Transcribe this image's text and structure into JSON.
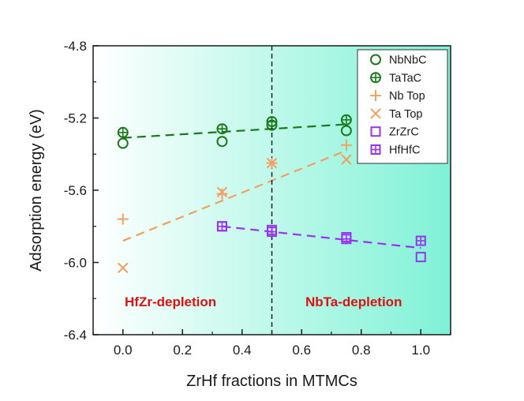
{
  "chart_data": {
    "type": "scatter",
    "xlabel": "ZrHf fractions in MTMCs",
    "ylabel": "Adsorption energy (eV)",
    "xlim": [
      -0.1,
      1.1
    ],
    "ylim": [
      -6.4,
      -4.8
    ],
    "xticks": [
      "0.0",
      "0.2",
      "0.4",
      "0.6",
      "0.8",
      "1.0"
    ],
    "yticks": [
      "-4.8",
      "-5.2",
      "-5.6",
      "-6.0",
      "-6.4"
    ],
    "grid": false,
    "legend_position": "top-right",
    "vline_x": 0.5,
    "background_gradient": [
      "#ffffff",
      "#7ff2d6"
    ],
    "regions": [
      {
        "label": "HfZr-depletion",
        "color": "#dd1111"
      },
      {
        "label": "NbTa-depletion",
        "color": "#dd1111"
      }
    ],
    "series": [
      {
        "name": "NbNbC",
        "marker": "circle",
        "color": "#1a7a1a",
        "x": [
          0.0,
          0.333,
          0.5,
          0.75
        ],
        "y": [
          -5.34,
          -5.33,
          -5.24,
          -5.27
        ]
      },
      {
        "name": "TaTaC",
        "marker": "circle-plus",
        "color": "#1a7a1a",
        "x": [
          0.0,
          0.333,
          0.5,
          0.75
        ],
        "y": [
          -5.28,
          -5.26,
          -5.22,
          -5.21
        ]
      },
      {
        "name": "Nb Top",
        "marker": "plus",
        "color": "#f0a060",
        "x": [
          0.0,
          0.333,
          0.5,
          0.75
        ],
        "y": [
          -5.76,
          -5.62,
          -5.45,
          -5.35
        ]
      },
      {
        "name": "Ta Top",
        "marker": "cross",
        "color": "#f0a060",
        "x": [
          0.0,
          0.333,
          0.5,
          0.75
        ],
        "y": [
          -6.03,
          -5.61,
          -5.45,
          -5.43
        ]
      },
      {
        "name": "ZrZrC",
        "marker": "square",
        "color": "#9933ee",
        "x": [
          0.333,
          0.5,
          0.75,
          1.0
        ],
        "y": [
          -5.8,
          -5.82,
          -5.86,
          -5.97
        ]
      },
      {
        "name": "HfHfC",
        "marker": "square-plus",
        "color": "#9933ee",
        "x": [
          0.333,
          0.5,
          0.75,
          1.0
        ],
        "y": [
          -5.8,
          -5.83,
          -5.87,
          -5.88
        ]
      }
    ],
    "fit_lines": [
      {
        "color": "#1a7a1a",
        "x": [
          0.0,
          0.75
        ],
        "y": [
          -5.31,
          -5.235
        ]
      },
      {
        "color": "#f0a060",
        "x": [
          0.0,
          0.75
        ],
        "y": [
          -5.88,
          -5.38
        ]
      },
      {
        "color": "#9933ee",
        "x": [
          0.333,
          1.0
        ],
        "y": [
          -5.8,
          -5.92
        ]
      }
    ]
  }
}
